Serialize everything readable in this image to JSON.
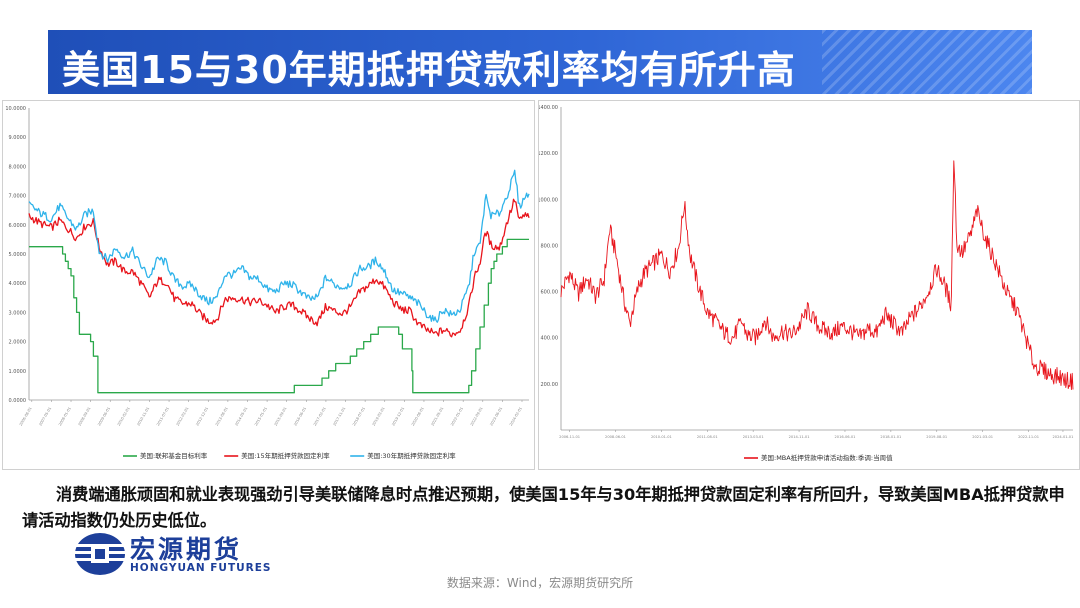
{
  "header": {
    "title": "美国15与30年期抵押贷款利率均有所升高"
  },
  "caption": {
    "text": "消费端通胀顽固和就业表现强劲引导美联储降息时点推迟预期，使美国15年与30年期抵押贷款固定利率有所回升，导致美国MBA抵押贷款申请活动指数仍处历史低位。"
  },
  "logo": {
    "name_cn": "宏源期货",
    "name_en": "HONGYUAN FUTURES"
  },
  "source": "数据来源：Wind，宏源期货研究所",
  "colors": {
    "title_bg": "#2457c5",
    "green": "#2aa84a",
    "red": "#e8141b",
    "blue": "#2fb3ea",
    "logo": "#1d3f9a"
  },
  "chart_data": [
    {
      "type": "line",
      "ylim": [
        0,
        10
      ],
      "yticks": [
        "0.0000",
        "1.0000",
        "2.0000",
        "3.0000",
        "4.0000",
        "5.0000",
        "6.0000",
        "7.0000",
        "8.0000",
        "9.0000",
        "10.0000"
      ],
      "x_range": [
        2006.5,
        2024.35
      ],
      "xtick_years": [
        2006.6,
        2007.3,
        2008.0,
        2008.7,
        2009.4,
        2010.1,
        2010.8,
        2011.5,
        2012.2,
        2012.9,
        2013.6,
        2014.3,
        2015.0,
        2015.7,
        2016.4,
        2017.1,
        2017.8,
        2018.5,
        2019.2,
        2019.9,
        2020.6,
        2021.3,
        2022.0,
        2022.7,
        2023.4,
        2024.1
      ],
      "series": [
        {
          "name": "美国:联邦基金目标利率",
          "color": "#2aa84a",
          "x": [
            2006.5,
            2007.6,
            2007.7,
            2007.8,
            2007.9,
            2008.0,
            2008.1,
            2008.2,
            2008.3,
            2008.7,
            2008.8,
            2008.96,
            2009.2,
            2009.4,
            2009.8,
            2010.1,
            2010.6,
            2011.0,
            2011.3,
            2011.6,
            2011.9,
            2012.2,
            2012.5,
            2012.8,
            2013.1,
            2013.4,
            2013.7,
            2014.0,
            2014.4,
            2014.7,
            2015.0,
            2015.5,
            2015.97,
            2016.96,
            2017.2,
            2017.45,
            2017.97,
            2018.2,
            2018.45,
            2018.7,
            2018.97,
            2019.55,
            2019.7,
            2019.83,
            2020.17,
            2020.2,
            2021.2,
            2022.2,
            2022.3,
            2022.45,
            2022.6,
            2022.75,
            2022.9,
            2023.0,
            2023.1,
            2023.2,
            2023.4,
            2023.57,
            2024.35
          ],
          "values": [
            5.25,
            5.25,
            5.0,
            4.75,
            4.5,
            4.25,
            3.5,
            3.0,
            2.25,
            2.0,
            1.5,
            0.25,
            0.25,
            0.25,
            0.25,
            0.25,
            0.25,
            0.25,
            0.25,
            0.25,
            0.25,
            0.25,
            0.25,
            0.25,
            0.25,
            0.25,
            0.25,
            0.25,
            0.25,
            0.25,
            0.25,
            0.25,
            0.5,
            0.75,
            1.0,
            1.25,
            1.5,
            1.75,
            2.0,
            2.25,
            2.5,
            2.5,
            2.25,
            1.75,
            1.0,
            0.25,
            0.25,
            0.5,
            1.0,
            1.75,
            2.5,
            3.25,
            4.0,
            4.5,
            4.75,
            5.0,
            5.25,
            5.5,
            5.5
          ]
        },
        {
          "name": "美国:15年期抵押贷款固定利率",
          "color": "#e8141b",
          "x": [
            2006.5,
            2006.9,
            2007.3,
            2007.6,
            2007.9,
            2008.2,
            2008.5,
            2008.8,
            2009.0,
            2009.3,
            2009.6,
            2009.9,
            2010.2,
            2010.5,
            2010.8,
            2011.1,
            2011.4,
            2011.7,
            2012.0,
            2012.3,
            2012.6,
            2012.9,
            2013.2,
            2013.5,
            2013.8,
            2014.1,
            2014.4,
            2014.7,
            2015.0,
            2015.3,
            2015.6,
            2015.9,
            2016.2,
            2016.5,
            2016.8,
            2017.1,
            2017.4,
            2017.7,
            2018.0,
            2018.3,
            2018.6,
            2018.9,
            2019.2,
            2019.5,
            2019.8,
            2020.1,
            2020.4,
            2020.7,
            2021.0,
            2021.3,
            2021.6,
            2021.9,
            2022.2,
            2022.4,
            2022.6,
            2022.8,
            2023.0,
            2023.3,
            2023.6,
            2023.85,
            2024.0,
            2024.2,
            2024.35
          ],
          "values": [
            6.3,
            6.05,
            5.9,
            6.15,
            5.85,
            5.55,
            5.95,
            6.1,
            5.25,
            4.65,
            4.75,
            4.4,
            4.4,
            4.0,
            3.5,
            4.1,
            4.05,
            3.45,
            3.3,
            3.3,
            2.95,
            2.7,
            2.75,
            3.45,
            3.5,
            3.45,
            3.35,
            3.4,
            3.25,
            3.0,
            3.2,
            3.25,
            3.05,
            2.8,
            2.65,
            3.2,
            3.05,
            2.95,
            3.2,
            3.7,
            3.9,
            4.15,
            3.85,
            3.35,
            3.1,
            3.05,
            2.6,
            2.4,
            2.25,
            2.4,
            2.25,
            2.4,
            3.2,
            4.2,
            4.7,
            5.8,
            5.3,
            5.2,
            6.2,
            6.9,
            6.1,
            6.35,
            6.25
          ]
        },
        {
          "name": "美国:30年期抵押贷款固定利率",
          "color": "#2fb3ea",
          "x": [
            2006.5,
            2006.9,
            2007.3,
            2007.6,
            2007.9,
            2008.2,
            2008.5,
            2008.8,
            2009.0,
            2009.3,
            2009.6,
            2009.9,
            2010.2,
            2010.5,
            2010.8,
            2011.1,
            2011.4,
            2011.7,
            2012.0,
            2012.3,
            2012.6,
            2012.9,
            2013.2,
            2013.5,
            2013.8,
            2014.1,
            2014.4,
            2014.7,
            2015.0,
            2015.3,
            2015.6,
            2015.9,
            2016.2,
            2016.5,
            2016.8,
            2017.1,
            2017.4,
            2017.7,
            2018.0,
            2018.3,
            2018.6,
            2018.9,
            2019.2,
            2019.5,
            2019.8,
            2020.1,
            2020.4,
            2020.7,
            2021.0,
            2021.3,
            2021.6,
            2021.9,
            2022.2,
            2022.4,
            2022.6,
            2022.8,
            2023.0,
            2023.3,
            2023.6,
            2023.85,
            2024.0,
            2024.2,
            2024.35
          ],
          "values": [
            6.7,
            6.4,
            6.2,
            6.65,
            6.2,
            5.85,
            6.35,
            6.5,
            5.1,
            4.8,
            5.2,
            4.9,
            5.1,
            4.6,
            4.2,
            4.85,
            4.7,
            4.1,
            3.9,
            3.95,
            3.6,
            3.35,
            3.5,
            4.3,
            4.3,
            4.5,
            4.2,
            4.15,
            3.8,
            3.7,
            4.0,
            3.95,
            3.7,
            3.45,
            3.5,
            4.2,
            3.95,
            3.85,
            4.0,
            4.5,
            4.55,
            4.8,
            4.4,
            3.75,
            3.65,
            3.5,
            3.3,
            2.95,
            2.7,
            3.1,
            2.9,
            3.1,
            3.9,
            5.1,
            5.3,
            7.0,
            6.3,
            6.4,
            7.1,
            7.8,
            6.6,
            6.95,
            7.05
          ]
        }
      ]
    },
    {
      "type": "line",
      "ylim": [
        0,
        1400
      ],
      "yticks": [
        "200.00",
        "400.00",
        "600.00",
        "800.00",
        "1000.00",
        "1200.00",
        "1400.00"
      ],
      "x_range": [
        2006.5,
        2024.35
      ],
      "xtick_years": [
        2006.8,
        2008.4,
        2010.0,
        2011.6,
        2013.2,
        2014.8,
        2016.4,
        2018.0,
        2019.6,
        2021.2,
        2022.8,
        2024.0
      ],
      "series": [
        {
          "name": "美国:MBA抵押贷款申请活动指数:季调:当周值",
          "color": "#e8141b",
          "x": [
            2006.5,
            2006.8,
            2007.1,
            2007.4,
            2007.7,
            2008.0,
            2008.2,
            2008.4,
            2008.7,
            2008.9,
            2009.0,
            2009.2,
            2009.4,
            2009.7,
            2010.0,
            2010.3,
            2010.6,
            2010.8,
            2011.0,
            2011.3,
            2011.6,
            2011.9,
            2012.2,
            2012.5,
            2012.8,
            2013.0,
            2013.3,
            2013.6,
            2013.9,
            2014.2,
            2014.5,
            2014.8,
            2015.1,
            2015.4,
            2015.7,
            2016.0,
            2016.3,
            2016.6,
            2016.9,
            2017.2,
            2017.5,
            2017.8,
            2018.1,
            2018.4,
            2018.7,
            2019.0,
            2019.3,
            2019.6,
            2019.9,
            2020.1,
            2020.2,
            2020.3,
            2020.5,
            2020.8,
            2021.0,
            2021.3,
            2021.6,
            2021.9,
            2022.1,
            2022.4,
            2022.7,
            2023.0,
            2023.3,
            2023.6,
            2023.9,
            2024.1,
            2024.35
          ],
          "values": [
            600,
            680,
            590,
            660,
            580,
            650,
            870,
            770,
            560,
            460,
            520,
            620,
            680,
            720,
            760,
            690,
            790,
            980,
            760,
            620,
            510,
            470,
            420,
            400,
            470,
            410,
            400,
            480,
            400,
            430,
            410,
            450,
            520,
            460,
            430,
            420,
            450,
            430,
            400,
            440,
            420,
            500,
            460,
            420,
            490,
            530,
            600,
            700,
            620,
            540,
            1200,
            800,
            770,
            850,
            950,
            830,
            740,
            640,
            580,
            520,
            400,
            280,
            260,
            240,
            230,
            215,
            210
          ]
        }
      ]
    }
  ]
}
